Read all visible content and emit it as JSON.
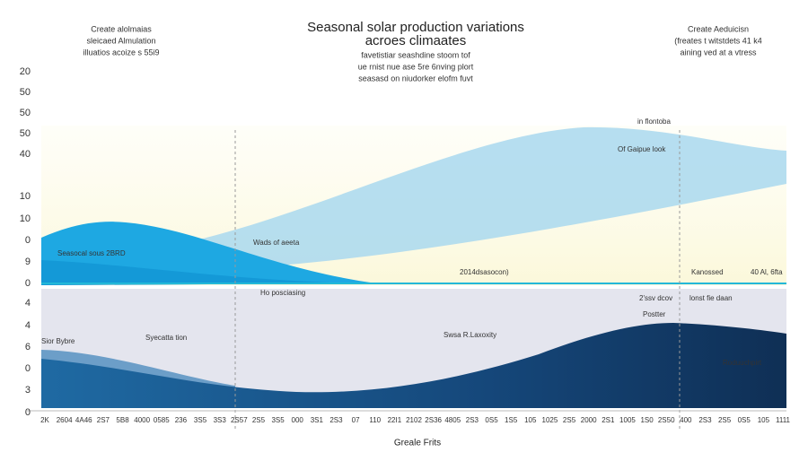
{
  "header": {
    "title": [
      "Seasonal solar production variations",
      "acroes climaates"
    ],
    "subtitle": [
      "favetistiar seashdine stoom tof",
      "ue rnist nue ase 5re 6nving plort",
      "seasasd on niudorker elofm fuvt"
    ],
    "left_note": [
      "Create alolmaias",
      "sleicaed Almulation",
      "illuatios acoize s 55i9"
    ],
    "right_note": [
      "Create Aeduicisn",
      "(freates t witstdets 41 k4",
      "aining ved at a vtress"
    ]
  },
  "upper_axis": [
    20,
    50,
    50,
    50,
    40,
    10,
    10,
    0,
    9,
    0
  ],
  "lower_axis": [
    4,
    4,
    6,
    0,
    3,
    0
  ],
  "annotations": [
    "in flontoba",
    "Of Gaipue look",
    "Wads of aeeta",
    "Seasocal sous 2BRD",
    "2014dsasocon)",
    "Kanossed",
    "40 Al, 6fta",
    "Ho posciasing",
    "2'ssv dcov",
    "lonst fie daan",
    "Postter",
    "Sior Bybre",
    "Syecatta tion",
    "Swsa R.Laxoxity",
    "Roduuchpirt"
  ],
  "x_labels": [
    "2K",
    "2604",
    "4A46",
    "2S7",
    "5B8",
    "4000",
    "0585",
    "236",
    "3S5",
    "3S3",
    "2S57",
    "2S5",
    "3S5",
    "000",
    "3S1",
    "2S3",
    "07",
    "110",
    "22I1",
    "2102",
    "2S36",
    "4805",
    "2S3",
    "0S5",
    "1S5",
    "105",
    "1025",
    "2S5",
    "2000",
    "2S1",
    "1005",
    "1S0",
    "2S50",
    "400",
    "2S3",
    "2S5",
    "0S5",
    "105",
    "1111"
  ],
  "footer": "Greale Frits"
}
